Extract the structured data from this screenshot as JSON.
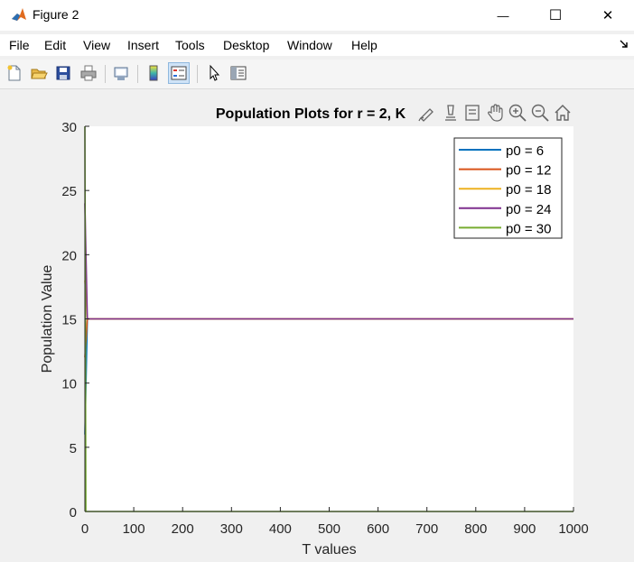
{
  "window": {
    "title": "Figure 2",
    "controls": {
      "minimize": "—",
      "maximize": "☐",
      "close": "✕"
    }
  },
  "menu": {
    "items": [
      "File",
      "Edit",
      "View",
      "Insert",
      "Tools",
      "Desktop",
      "Window",
      "Help"
    ]
  },
  "toolbar": {
    "icons": [
      "new-figure-icon",
      "open-file-icon",
      "save-icon",
      "print-icon",
      "link-plot-icon",
      "insert-colorbar-icon",
      "insert-legend-icon",
      "edit-plot-cursor-icon",
      "property-inspector-icon"
    ],
    "active": "insert-legend-icon"
  },
  "axes_toolbar": {
    "icons": [
      "brush-data-icon",
      "data-tips-icon",
      "datatip-list-icon",
      "pan-icon",
      "zoom-in-icon",
      "zoom-out-icon",
      "restore-view-icon"
    ]
  },
  "colors": {
    "series1": "#0072BD",
    "series2": "#D95319",
    "series3": "#EDB120",
    "series4": "#7E2F8E",
    "series5": "#77AC30"
  },
  "chart_data": {
    "type": "line",
    "title": "Population Plots for r = 2, K",
    "xlabel": "T values",
    "ylabel": "Population Value",
    "xlim": [
      0,
      1000
    ],
    "ylim": [
      0,
      30
    ],
    "xticks": [
      0,
      100,
      200,
      300,
      400,
      500,
      600,
      700,
      800,
      900,
      1000
    ],
    "yticks": [
      0,
      5,
      10,
      15,
      20,
      25,
      30
    ],
    "grid": false,
    "legend_position": "top-right",
    "series": [
      {
        "name": "p0 = 6",
        "x": [
          0,
          5,
          1000
        ],
        "y": [
          6,
          15,
          15
        ]
      },
      {
        "name": "p0 = 12",
        "x": [
          0,
          5,
          1000
        ],
        "y": [
          12,
          15,
          15
        ]
      },
      {
        "name": "p0 = 18",
        "x": [
          0,
          5,
          1000
        ],
        "y": [
          18,
          15,
          15
        ]
      },
      {
        "name": "p0 = 24",
        "x": [
          0,
          5,
          1000
        ],
        "y": [
          24,
          15,
          15
        ]
      },
      {
        "name": "p0 = 30",
        "x": [
          0,
          2,
          1000
        ],
        "y": [
          30,
          0,
          0
        ]
      }
    ]
  }
}
